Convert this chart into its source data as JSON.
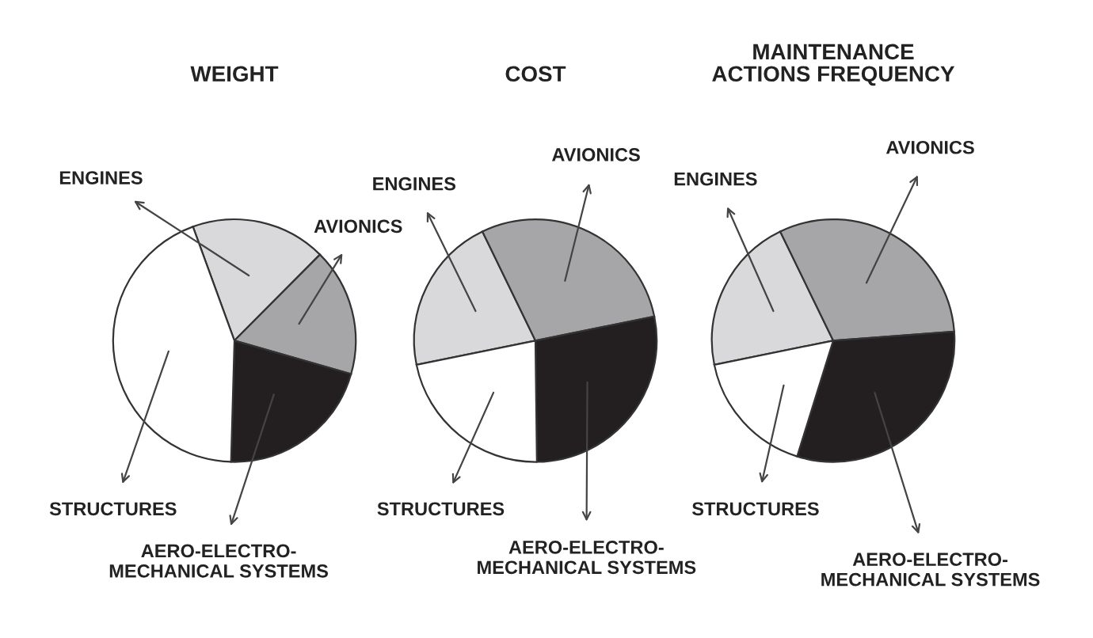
{
  "chart_data": [
    {
      "type": "pie",
      "title": "WEIGHT",
      "categories": [
        "ENGINES",
        "AVIONICS",
        "AERO-ELECTRO-\nMECHANICAL SYSTEMS",
        "STRUCTURES"
      ],
      "values": [
        18,
        17,
        21,
        44
      ],
      "colors": [
        "#d9d9db",
        "#a6a6a8",
        "#231f20",
        "#ffffff"
      ]
    },
    {
      "type": "pie",
      "title": "COST",
      "categories": [
        "ENGINES",
        "AVIONICS",
        "AERO-ELECTRO-\nMECHANICAL SYSTEMS",
        "STRUCTURES"
      ],
      "values": [
        21,
        29,
        28,
        22
      ],
      "colors": [
        "#d9d9db",
        "#a6a6a8",
        "#231f20",
        "#ffffff"
      ]
    },
    {
      "type": "pie",
      "title": "MAINTENANCE\nACTIONS FREQUENCY",
      "categories": [
        "ENGINES",
        "AVIONICS",
        "AERO-ELECTRO-\nMECHANICAL SYSTEMS",
        "STRUCTURES"
      ],
      "values": [
        21,
        31,
        31,
        17
      ],
      "colors": [
        "#d9d9db",
        "#a6a6a8",
        "#231f20",
        "#ffffff"
      ]
    }
  ]
}
